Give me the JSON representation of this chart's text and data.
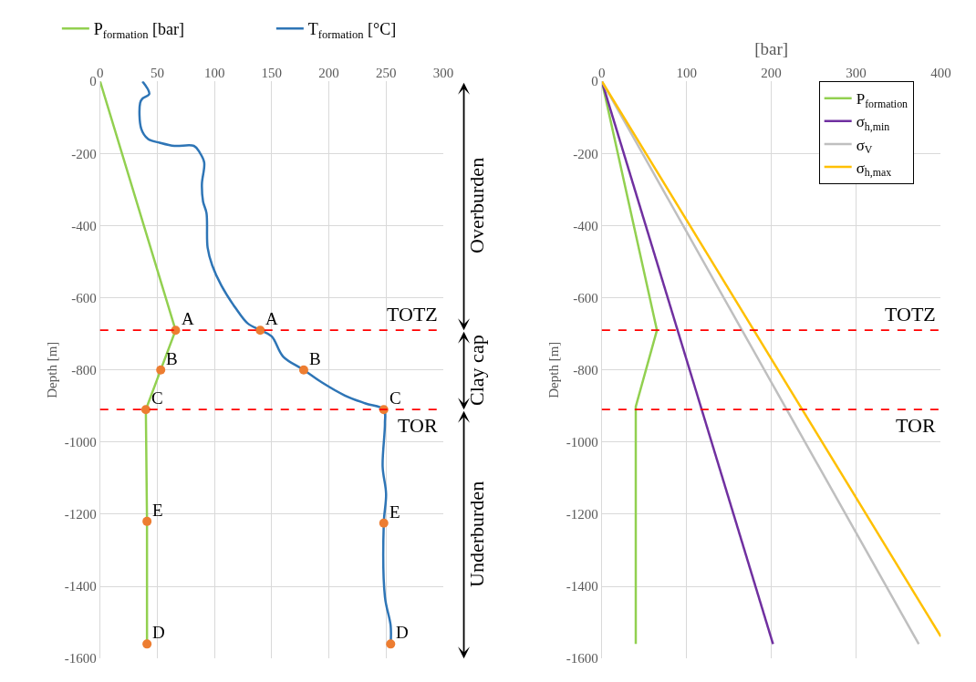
{
  "chart_data": [
    {
      "type": "line",
      "ylabel": "Depth [m]",
      "xlim": [
        0,
        300
      ],
      "xticks": [
        0,
        50,
        100,
        150,
        200,
        250,
        300
      ],
      "ylim": [
        -1600,
        0
      ],
      "yticks": [
        0,
        -200,
        -400,
        -600,
        -800,
        -1000,
        -1200,
        -1400,
        -1600
      ],
      "grid": true,
      "legend": "top",
      "marker": "none",
      "line_style": "solid",
      "series": [
        {
          "name": "P$_{formation}$ [bar]",
          "color": "#92d050",
          "x": [
            0,
            66,
            53,
            40,
            41,
            41
          ],
          "values": [
            0,
            -690,
            -800,
            -910,
            -1220,
            -1560
          ]
        },
        {
          "name": "T$_{formation}$ [°C]",
          "color": "#2e75b6",
          "x": [
            37,
            43,
            37,
            35,
            36,
            42,
            52,
            65,
            82,
            87,
            91,
            89,
            90,
            93,
            94,
            98,
            106,
            119,
            129,
            140,
            150,
            160,
            178,
            194,
            214,
            232,
            248,
            249,
            247,
            250,
            248,
            249,
            254,
            254
          ],
          "values": [
            0,
            -35,
            -48,
            -60,
            -132,
            -160,
            -170,
            -179,
            -179,
            -197,
            -225,
            -285,
            -333,
            -365,
            -461,
            -510,
            -566,
            -631,
            -671,
            -690,
            -707,
            -763,
            -800,
            -835,
            -871,
            -893,
            -910,
            -948,
            -1068,
            -1144,
            -1225,
            -1429,
            -1509,
            -1560
          ]
        },
        {
          "type": "scatter",
          "marker": "circle",
          "color": "#ed7d31",
          "x": [
            66,
            53,
            40,
            41,
            41,
            140,
            178,
            248,
            248,
            254
          ],
          "values": [
            -690,
            -800,
            -910,
            -1220,
            -1560,
            -690,
            -800,
            -910,
            -1225,
            -1560
          ]
        }
      ],
      "annotations": [
        {
          "text": "A",
          "x": 66,
          "y": -690
        },
        {
          "text": "B",
          "x": 53,
          "y": -800
        },
        {
          "text": "C",
          "x": 40,
          "y": -910
        },
        {
          "text": "E",
          "x": 41,
          "y": -1220
        },
        {
          "text": "D",
          "x": 41,
          "y": -1560
        },
        {
          "text": "A",
          "x": 140,
          "y": -690
        },
        {
          "text": "B",
          "x": 178,
          "y": -800
        },
        {
          "text": "C",
          "x": 248,
          "y": -910
        },
        {
          "text": "E",
          "x": 248,
          "y": -1225
        },
        {
          "text": "D",
          "x": 254,
          "y": -1560
        },
        "Overburden",
        "Clay cap",
        "Underburden"
      ],
      "ref_lines": [
        {
          "axis": "y",
          "value": -690,
          "label": "TOTZ",
          "color": "#ff0000",
          "line_style": "dashed"
        },
        {
          "axis": "y",
          "value": -910,
          "label": "TOR",
          "color": "#ff0000",
          "line_style": "dashed"
        }
      ]
    },
    {
      "type": "line",
      "xlabel": "[bar]",
      "ylabel": "Depth [m]",
      "xlim": [
        0,
        400
      ],
      "xticks": [
        0,
        100,
        200,
        300,
        400
      ],
      "ylim": [
        -1600,
        0
      ],
      "yticks": [
        0,
        -200,
        -400,
        -600,
        -800,
        -1000,
        -1200,
        -1400,
        -1600
      ],
      "grid": true,
      "legend": "top right",
      "marker": "none",
      "line_style": "solid",
      "series": [
        {
          "name": "P$_{formation}$",
          "color": "#92d050",
          "x": [
            0,
            65,
            40,
            40
          ],
          "values": [
            0,
            -690,
            -902,
            -1560
          ]
        },
        {
          "name": "σ$_{h,min}$",
          "color": "#7030a0",
          "x": [
            0,
            202
          ],
          "values": [
            0,
            -1560
          ]
        },
        {
          "name": "σ$_{V}$",
          "color": "#bfbfbf",
          "x": [
            0,
            374
          ],
          "values": [
            0,
            -1560
          ]
        },
        {
          "name": "σ$_{h,max}$",
          "color": "#ffc000",
          "x": [
            0,
            400
          ],
          "values": [
            0,
            -1539
          ]
        }
      ],
      "ref_lines": [
        {
          "axis": "y",
          "value": -690,
          "label": "TOTZ",
          "color": "#ff0000",
          "line_style": "dashed"
        },
        {
          "axis": "y",
          "value": -910,
          "label": "TOR",
          "color": "#ff0000",
          "line_style": "dashed"
        }
      ]
    }
  ]
}
